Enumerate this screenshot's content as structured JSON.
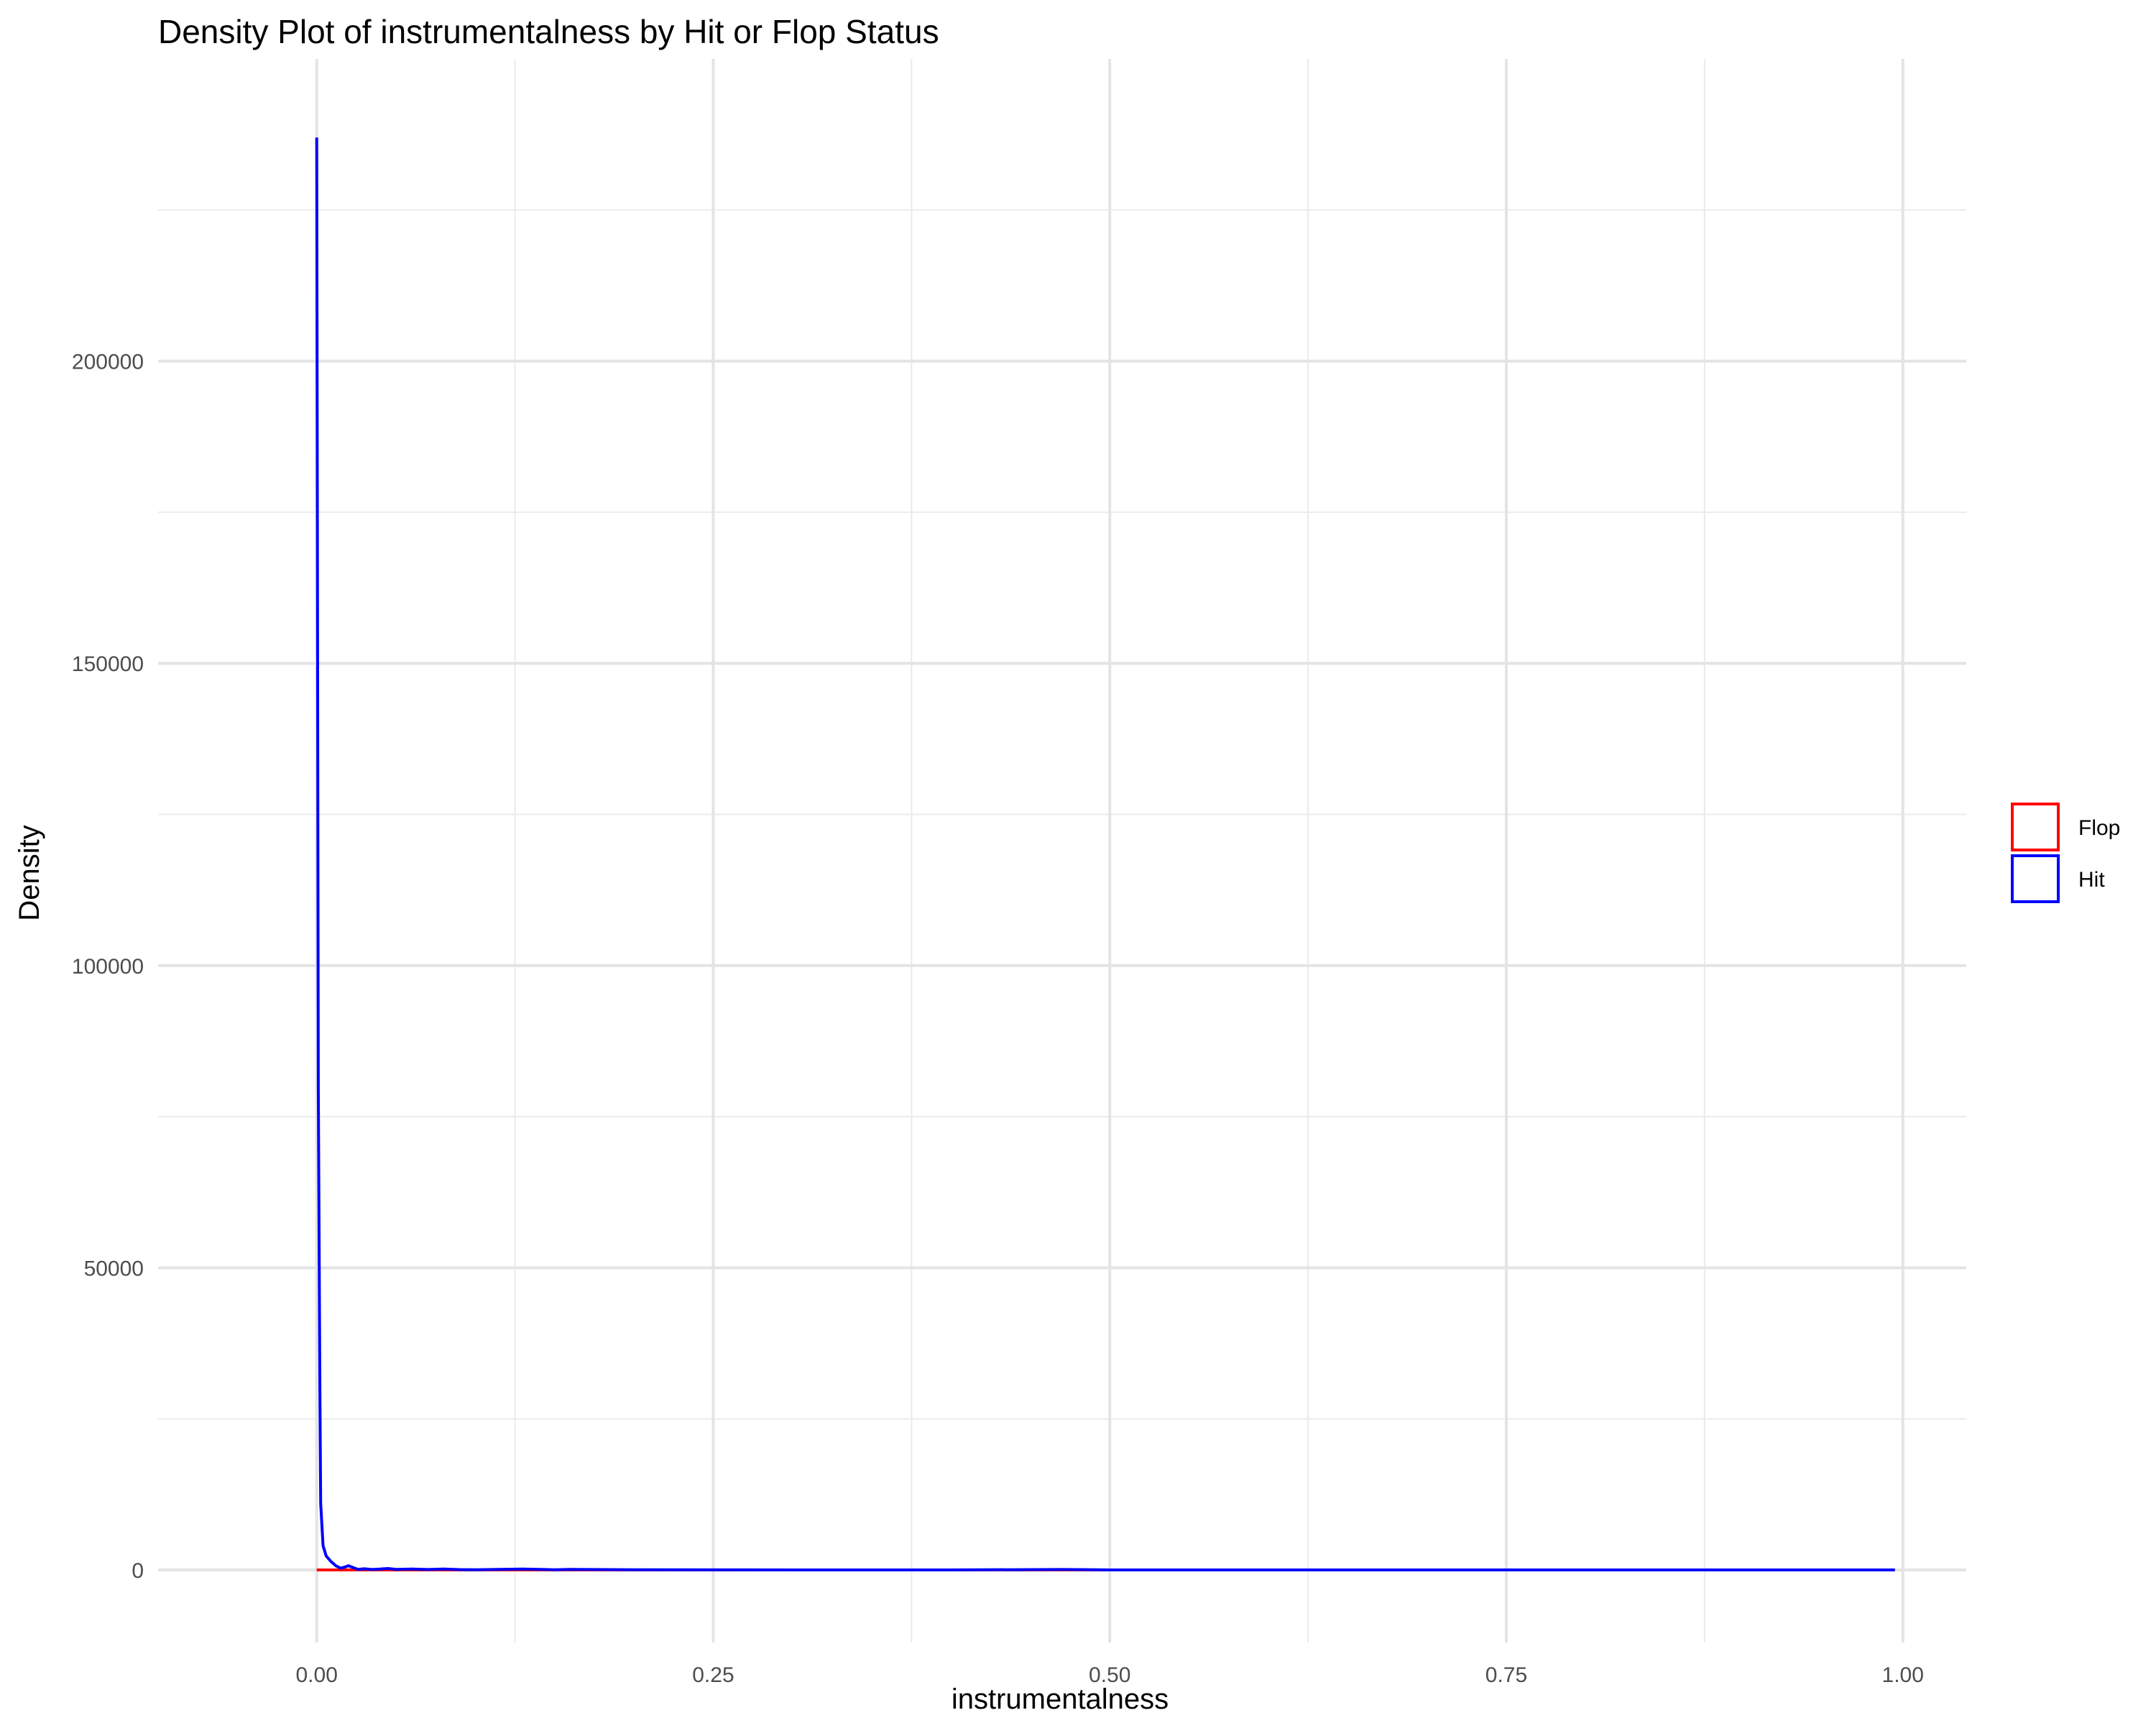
{
  "chart_data": {
    "type": "line",
    "title": "Density Plot of instrumentalness by Hit or Flop Status",
    "xlabel": "instrumentalness",
    "ylabel": "Density",
    "xlim": [
      -0.1,
      1.04
    ],
    "ylim": [
      -12000,
      250000
    ],
    "x_ticks": [
      {
        "value": 0.0,
        "label": "0.00"
      },
      {
        "value": 0.25,
        "label": "0.25"
      },
      {
        "value": 0.5,
        "label": "0.50"
      },
      {
        "value": 0.75,
        "label": "0.75"
      },
      {
        "value": 1.0,
        "label": "1.00"
      }
    ],
    "x_minor_ticks": [
      0.125,
      0.375,
      0.625,
      0.875
    ],
    "y_ticks": [
      {
        "value": 0,
        "label": "0"
      },
      {
        "value": 50000,
        "label": "50000"
      },
      {
        "value": 100000,
        "label": "100000"
      },
      {
        "value": 150000,
        "label": "150000"
      },
      {
        "value": 200000,
        "label": "200000"
      }
    ],
    "y_minor_ticks": [
      25000,
      75000,
      125000,
      175000,
      225000
    ],
    "grid": true,
    "legend_position": "right",
    "series": [
      {
        "name": "Flop",
        "color": "#FF0000",
        "points": [
          [
            0.0,
            0
          ],
          [
            0.02,
            0
          ],
          [
            0.1,
            0
          ],
          [
            0.5,
            0
          ],
          [
            0.995,
            0
          ]
        ]
      },
      {
        "name": "Hit",
        "color": "#0000FF",
        "points": [
          [
            0.0,
            237000
          ],
          [
            0.0005,
            160000
          ],
          [
            0.001,
            80000
          ],
          [
            0.002,
            30000
          ],
          [
            0.0025,
            11000
          ],
          [
            0.004,
            4000
          ],
          [
            0.006,
            2300
          ],
          [
            0.009,
            1400
          ],
          [
            0.012,
            700
          ],
          [
            0.015,
            300
          ],
          [
            0.018,
            500
          ],
          [
            0.02,
            700
          ],
          [
            0.023,
            400
          ],
          [
            0.026,
            100
          ],
          [
            0.03,
            200
          ],
          [
            0.035,
            80
          ],
          [
            0.04,
            150
          ],
          [
            0.045,
            250
          ],
          [
            0.05,
            100
          ],
          [
            0.06,
            150
          ],
          [
            0.07,
            80
          ],
          [
            0.08,
            150
          ],
          [
            0.09,
            60
          ],
          [
            0.1,
            40
          ],
          [
            0.13,
            150
          ],
          [
            0.15,
            40
          ],
          [
            0.16,
            100
          ],
          [
            0.2,
            40
          ],
          [
            0.25,
            20
          ],
          [
            0.3,
            10
          ],
          [
            0.4,
            10
          ],
          [
            0.47,
            80
          ],
          [
            0.5,
            10
          ],
          [
            0.6,
            10
          ],
          [
            0.7,
            10
          ],
          [
            0.8,
            10
          ],
          [
            0.9,
            10
          ],
          [
            0.995,
            5
          ]
        ]
      }
    ]
  }
}
